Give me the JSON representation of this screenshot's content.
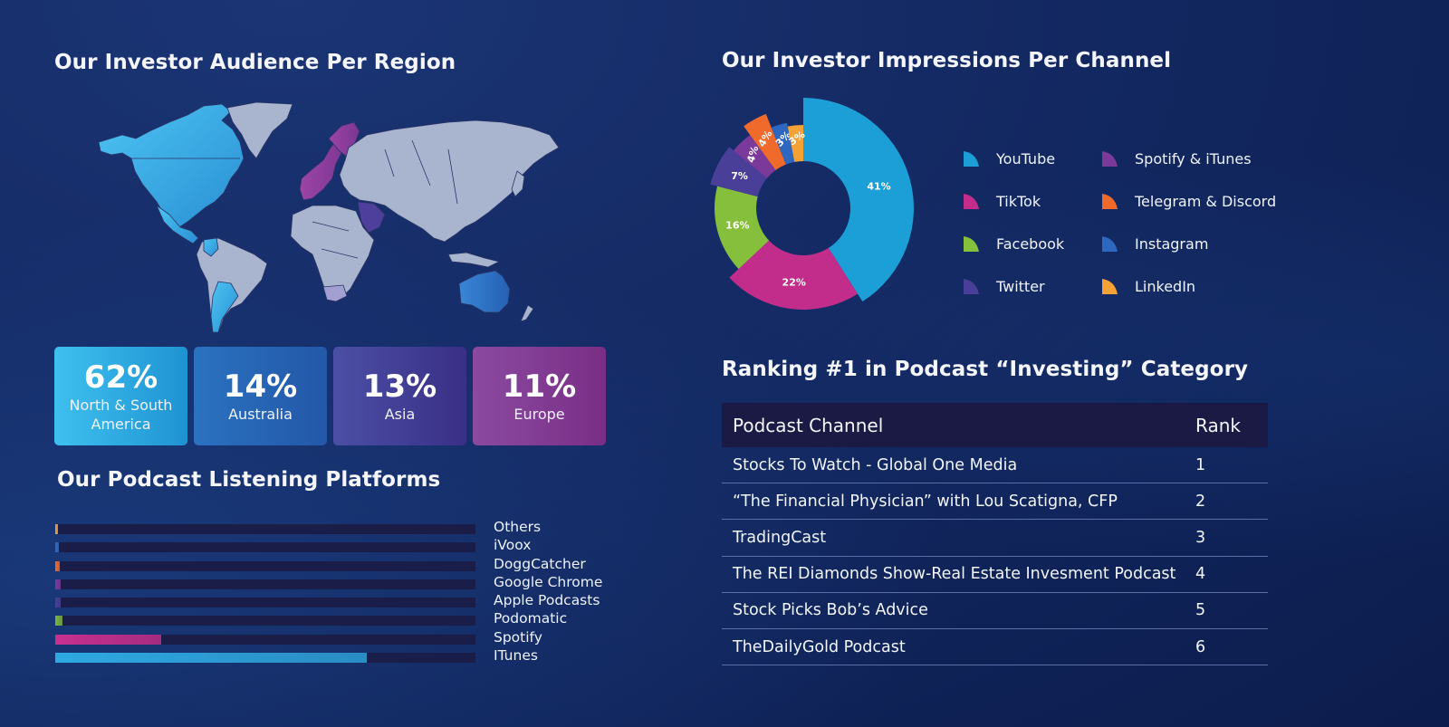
{
  "sections": {
    "region": {
      "title": "Our Investor Audience Per Region"
    },
    "channel": {
      "title": "Our Investor Impressions Per Channel"
    },
    "platforms": {
      "title": "Our Podcast Listening Platforms"
    },
    "ranking": {
      "title": "Ranking #1 in Podcast “Investing” Category"
    }
  },
  "regions": [
    {
      "pct": "62%",
      "label": "North & South America",
      "color": "#2fa6e0"
    },
    {
      "pct": "14%",
      "label": "Australia",
      "color": "#2762b2"
    },
    {
      "pct": "13%",
      "label": "Asia",
      "color": "#423d95"
    },
    {
      "pct": "11%",
      "label": "Europe",
      "color": "#823c93"
    }
  ],
  "map": {
    "land_color": "#a9b4cf",
    "border_color": "#2a3466",
    "highlight_colors": {
      "americas": "#36aee6",
      "australia": "#2c6fc4",
      "asia": "#4f3f9c",
      "europe": "#8a3b98"
    }
  },
  "platforms": [
    {
      "label": "Others",
      "value": 0.4,
      "color": "#f0a23a"
    },
    {
      "label": "iVoox",
      "value": 0.9,
      "color": "#2f6cc5"
    },
    {
      "label": "DoggCatcher",
      "value": 1.1,
      "color": "#ef6a2f"
    },
    {
      "label": "Google Chrome",
      "value": 1.3,
      "color": "#7b3c9c"
    },
    {
      "label": "Apple Podcasts",
      "value": 1.3,
      "color": "#4b3f98"
    },
    {
      "label": "Podomatic",
      "value": 1.8,
      "color": "#7cb342"
    },
    {
      "label": "Spotify",
      "value": 25.2,
      "color": "#c8308f"
    },
    {
      "label": "ITunes",
      "value": 74.2,
      "color": "#2ea9e2"
    }
  ],
  "chart_data": [
    {
      "type": "pie",
      "title": "Our Investor Impressions Per Channel",
      "categories": [
        "YouTube",
        "TikTok",
        "Facebook",
        "Twitter",
        "Spotify & iTunes",
        "Telegram & Discord",
        "Instagram",
        "LinkedIn"
      ],
      "values": [
        41,
        22,
        16,
        7,
        4,
        4,
        3,
        3
      ],
      "labels": [
        "41%",
        "22%",
        "16%",
        "7%",
        "4%",
        "4%",
        "3%",
        "3%"
      ],
      "colors": [
        "#1b9fd6",
        "#c22d8c",
        "#86bf3b",
        "#4a3f98",
        "#7b3a9a",
        "#f06a2c",
        "#2d67bf",
        "#f4a235"
      ],
      "donut": true,
      "legend_position": "right"
    },
    {
      "type": "bar",
      "orientation": "horizontal",
      "title": "Our Podcast Listening Platforms",
      "categories": [
        "Others",
        "iVoox",
        "DoggCatcher",
        "Google Chrome",
        "Apple Podcasts",
        "Podomatic",
        "Spotify",
        "ITunes"
      ],
      "values": [
        0.4,
        0.9,
        1.1,
        1.3,
        1.3,
        1.8,
        25.2,
        74.2
      ],
      "xlim": [
        0,
        100
      ],
      "grid": false
    },
    {
      "type": "table",
      "title": "Ranking #1 in Podcast “Investing” Category",
      "columns": [
        "Podcast Channel",
        "Rank"
      ],
      "rows": [
        [
          "Stocks To Watch - Global One Media",
          1
        ],
        [
          "“The Financial Physician” with Lou Scatigna, CFP",
          2
        ],
        [
          "TradingCast",
          3
        ],
        [
          "The REI Diamonds Show-Real Estate Invesment Podcast",
          4
        ],
        [
          "Stock Picks Bob’s Advice",
          5
        ],
        [
          "TheDailyGold Podcast",
          6
        ]
      ]
    }
  ],
  "legend": [
    {
      "label": "YouTube",
      "color": "#1b9fd6"
    },
    {
      "label": "Spotify & iTunes",
      "color": "#7b3a9a"
    },
    {
      "label": "TikTok",
      "color": "#c22d8c"
    },
    {
      "label": "Telegram & Discord",
      "color": "#f06a2c"
    },
    {
      "label": "Facebook",
      "color": "#86bf3b"
    },
    {
      "label": "Instagram",
      "color": "#2d67bf"
    },
    {
      "label": "Twitter",
      "color": "#4a3f98"
    },
    {
      "label": "LinkedIn",
      "color": "#f4a235"
    }
  ],
  "table": {
    "headers": {
      "channel": "Podcast Channel",
      "rank": "Rank"
    },
    "rows": [
      {
        "channel": "Stocks To Watch - Global One Media",
        "rank": "1"
      },
      {
        "channel": "“The Financial Physician” with Lou Scatigna, CFP",
        "rank": "2"
      },
      {
        "channel": "TradingCast",
        "rank": "3"
      },
      {
        "channel": "The REI Diamonds Show-Real Estate Invesment Podcast",
        "rank": "4"
      },
      {
        "channel": "Stock Picks Bob’s Advice",
        "rank": "5"
      },
      {
        "channel": "TheDailyGold Podcast",
        "rank": "6"
      }
    ]
  }
}
